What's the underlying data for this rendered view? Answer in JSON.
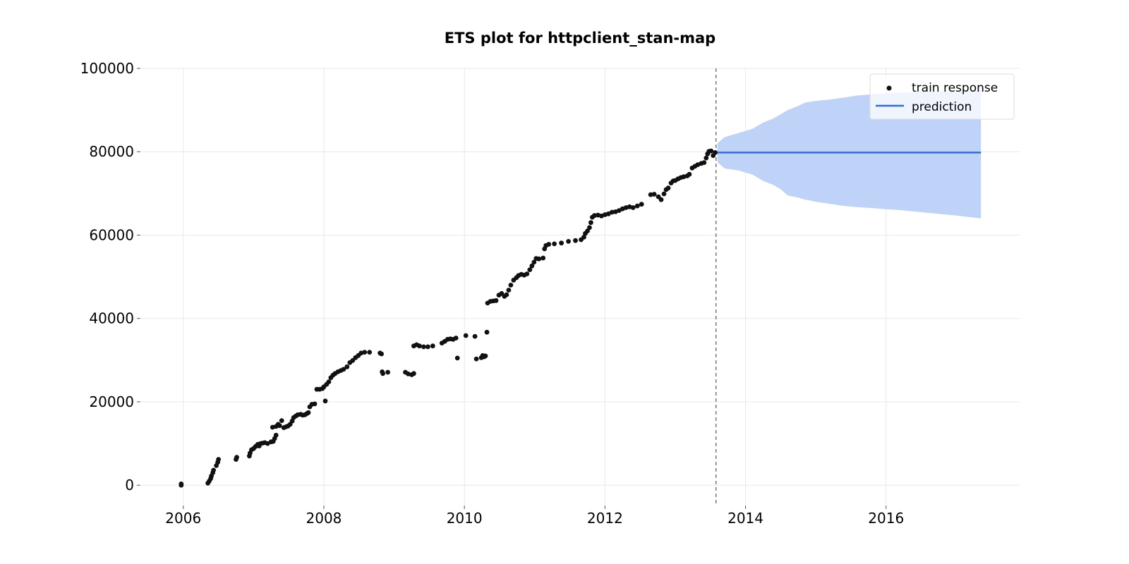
{
  "chart_data": {
    "type": "scatter",
    "title": "ETS plot for httpclient_stan-map",
    "xlabel": "",
    "ylabel": "",
    "xlim": [
      2005.4,
      2017.9
    ],
    "ylim": [
      -4700,
      100000
    ],
    "x_ticks": [
      2006,
      2008,
      2010,
      2012,
      2014,
      2016
    ],
    "y_ticks": [
      0,
      20000,
      40000,
      60000,
      80000,
      100000
    ],
    "grid": true,
    "legend": {
      "placement": "top-right",
      "entries": [
        "train response",
        "prediction"
      ]
    },
    "colors": {
      "train": "#111111",
      "prediction": "#2f6fde",
      "interval": "#bfd3f8",
      "split": "#777777",
      "grid": "#e8e8e8"
    },
    "split_x": 2013.58,
    "series": [
      {
        "name": "train response",
        "kind": "scatter",
        "points": [
          [
            2005.97,
            300
          ],
          [
            2005.97,
            0
          ],
          [
            2006.35,
            500
          ],
          [
            2006.37,
            1000
          ],
          [
            2006.39,
            1600
          ],
          [
            2006.4,
            2200
          ],
          [
            2006.42,
            3000
          ],
          [
            2006.43,
            3600
          ],
          [
            2006.47,
            4700
          ],
          [
            2006.49,
            5500
          ],
          [
            2006.5,
            6200
          ],
          [
            2006.75,
            6200
          ],
          [
            2006.76,
            6700
          ],
          [
            2006.94,
            7000
          ],
          [
            2006.95,
            7700
          ],
          [
            2006.97,
            8500
          ],
          [
            2007.0,
            8800
          ],
          [
            2007.03,
            9300
          ],
          [
            2007.06,
            9800
          ],
          [
            2007.08,
            9400
          ],
          [
            2007.1,
            10000
          ],
          [
            2007.13,
            10100
          ],
          [
            2007.16,
            10200
          ],
          [
            2007.2,
            10000
          ],
          [
            2007.25,
            10400
          ],
          [
            2007.28,
            10500
          ],
          [
            2007.3,
            11200
          ],
          [
            2007.32,
            12000
          ],
          [
            2007.27,
            13900
          ],
          [
            2007.32,
            14100
          ],
          [
            2007.35,
            14600
          ],
          [
            2007.37,
            14300
          ],
          [
            2007.4,
            15500
          ],
          [
            2007.43,
            13800
          ],
          [
            2007.46,
            14000
          ],
          [
            2007.49,
            14200
          ],
          [
            2007.52,
            14600
          ],
          [
            2007.55,
            15400
          ],
          [
            2007.57,
            16200
          ],
          [
            2007.6,
            16600
          ],
          [
            2007.63,
            16900
          ],
          [
            2007.67,
            17000
          ],
          [
            2007.7,
            16800
          ],
          [
            2007.73,
            16900
          ],
          [
            2007.76,
            17200
          ],
          [
            2007.78,
            17400
          ],
          [
            2007.8,
            18800
          ],
          [
            2007.83,
            19400
          ],
          [
            2007.87,
            19500
          ],
          [
            2007.9,
            23000
          ],
          [
            2007.94,
            23000
          ],
          [
            2007.98,
            23200
          ],
          [
            2008.0,
            23600
          ],
          [
            2008.02,
            20200
          ],
          [
            2008.04,
            24200
          ],
          [
            2008.07,
            24800
          ],
          [
            2008.1,
            25800
          ],
          [
            2008.13,
            26400
          ],
          [
            2008.16,
            26800
          ],
          [
            2008.2,
            27200
          ],
          [
            2008.24,
            27500
          ],
          [
            2008.28,
            27800
          ],
          [
            2008.33,
            28400
          ],
          [
            2008.37,
            29400
          ],
          [
            2008.41,
            29900
          ],
          [
            2008.45,
            30600
          ],
          [
            2008.49,
            31100
          ],
          [
            2008.53,
            31700
          ],
          [
            2008.58,
            31900
          ],
          [
            2008.65,
            31900
          ],
          [
            2008.8,
            31700
          ],
          [
            2008.82,
            31500
          ],
          [
            2008.83,
            27200
          ],
          [
            2008.84,
            26800
          ],
          [
            2008.91,
            27100
          ],
          [
            2009.16,
            27100
          ],
          [
            2009.2,
            26700
          ],
          [
            2009.25,
            26500
          ],
          [
            2009.28,
            26800
          ],
          [
            2009.28,
            33400
          ],
          [
            2009.32,
            33700
          ],
          [
            2009.36,
            33400
          ],
          [
            2009.42,
            33200
          ],
          [
            2009.48,
            33200
          ],
          [
            2009.55,
            33400
          ],
          [
            2009.68,
            34100
          ],
          [
            2009.72,
            34500
          ],
          [
            2009.76,
            35000
          ],
          [
            2009.8,
            35100
          ],
          [
            2009.84,
            35000
          ],
          [
            2009.88,
            35300
          ],
          [
            2009.9,
            30500
          ],
          [
            2010.02,
            35900
          ],
          [
            2010.15,
            35700
          ],
          [
            2010.17,
            30300
          ],
          [
            2010.24,
            30600
          ],
          [
            2010.26,
            31100
          ],
          [
            2010.28,
            30800
          ],
          [
            2010.3,
            31000
          ],
          [
            2010.32,
            36700
          ],
          [
            2010.33,
            43700
          ],
          [
            2010.37,
            44100
          ],
          [
            2010.41,
            44200
          ],
          [
            2010.45,
            44300
          ],
          [
            2010.49,
            45600
          ],
          [
            2010.53,
            46000
          ],
          [
            2010.57,
            45300
          ],
          [
            2010.6,
            45700
          ],
          [
            2010.63,
            46800
          ],
          [
            2010.66,
            48000
          ],
          [
            2010.7,
            49200
          ],
          [
            2010.74,
            49800
          ],
          [
            2010.77,
            50300
          ],
          [
            2010.81,
            50600
          ],
          [
            2010.85,
            50400
          ],
          [
            2010.89,
            50700
          ],
          [
            2010.93,
            51700
          ],
          [
            2010.96,
            52600
          ],
          [
            2010.99,
            53500
          ],
          [
            2011.02,
            54400
          ],
          [
            2011.06,
            54300
          ],
          [
            2011.12,
            54500
          ],
          [
            2011.14,
            56700
          ],
          [
            2011.16,
            57500
          ],
          [
            2011.2,
            57800
          ],
          [
            2011.28,
            57900
          ],
          [
            2011.38,
            58100
          ],
          [
            2011.48,
            58500
          ],
          [
            2011.58,
            58700
          ],
          [
            2011.66,
            58900
          ],
          [
            2011.7,
            59500
          ],
          [
            2011.72,
            60400
          ],
          [
            2011.75,
            61000
          ],
          [
            2011.78,
            61800
          ],
          [
            2011.8,
            63000
          ],
          [
            2011.82,
            64300
          ],
          [
            2011.85,
            64700
          ],
          [
            2011.9,
            64800
          ],
          [
            2011.95,
            64600
          ],
          [
            2012.0,
            64900
          ],
          [
            2012.05,
            65100
          ],
          [
            2012.1,
            65500
          ],
          [
            2012.15,
            65600
          ],
          [
            2012.2,
            65900
          ],
          [
            2012.25,
            66300
          ],
          [
            2012.3,
            66600
          ],
          [
            2012.35,
            66800
          ],
          [
            2012.4,
            66600
          ],
          [
            2012.46,
            67000
          ],
          [
            2012.52,
            67400
          ],
          [
            2012.65,
            69700
          ],
          [
            2012.7,
            69800
          ],
          [
            2012.76,
            69200
          ],
          [
            2012.8,
            68500
          ],
          [
            2012.84,
            69900
          ],
          [
            2012.87,
            70900
          ],
          [
            2012.9,
            71300
          ],
          [
            2012.94,
            72500
          ],
          [
            2012.97,
            73000
          ],
          [
            2013.0,
            73100
          ],
          [
            2013.04,
            73500
          ],
          [
            2013.08,
            73800
          ],
          [
            2013.12,
            74000
          ],
          [
            2013.17,
            74200
          ],
          [
            2013.2,
            74600
          ],
          [
            2013.24,
            76100
          ],
          [
            2013.28,
            76500
          ],
          [
            2013.32,
            76900
          ],
          [
            2013.37,
            77200
          ],
          [
            2013.41,
            77400
          ],
          [
            2013.44,
            78500
          ],
          [
            2013.46,
            79500
          ],
          [
            2013.48,
            80100
          ],
          [
            2013.51,
            80200
          ],
          [
            2013.54,
            79100
          ],
          [
            2013.57,
            79800
          ]
        ]
      },
      {
        "name": "prediction",
        "kind": "line",
        "x": [
          2013.6,
          2017.35
        ],
        "values": [
          79800,
          79800
        ]
      }
    ],
    "interval": {
      "x": [
        2013.6,
        2013.7,
        2013.9,
        2014.1,
        2014.25,
        2014.4,
        2014.5,
        2014.6,
        2014.75,
        2014.85,
        2015.0,
        2015.2,
        2015.4,
        2015.6,
        2015.8,
        2016.0,
        2016.2,
        2016.5,
        2016.8,
        2017.0,
        2017.2,
        2017.35
      ],
      "upper": [
        82000,
        83500,
        84500,
        85500,
        87000,
        88000,
        89000,
        90000,
        91000,
        91800,
        92200,
        92500,
        93000,
        93500,
        93800,
        94000,
        94200,
        94400,
        94500,
        94600,
        94700,
        94800
      ],
      "lower": [
        77500,
        76000,
        75500,
        74500,
        73000,
        72000,
        71000,
        69500,
        69000,
        68500,
        68000,
        67500,
        67000,
        66700,
        66500,
        66200,
        66000,
        65500,
        65000,
        64700,
        64300,
        64000
      ]
    }
  }
}
